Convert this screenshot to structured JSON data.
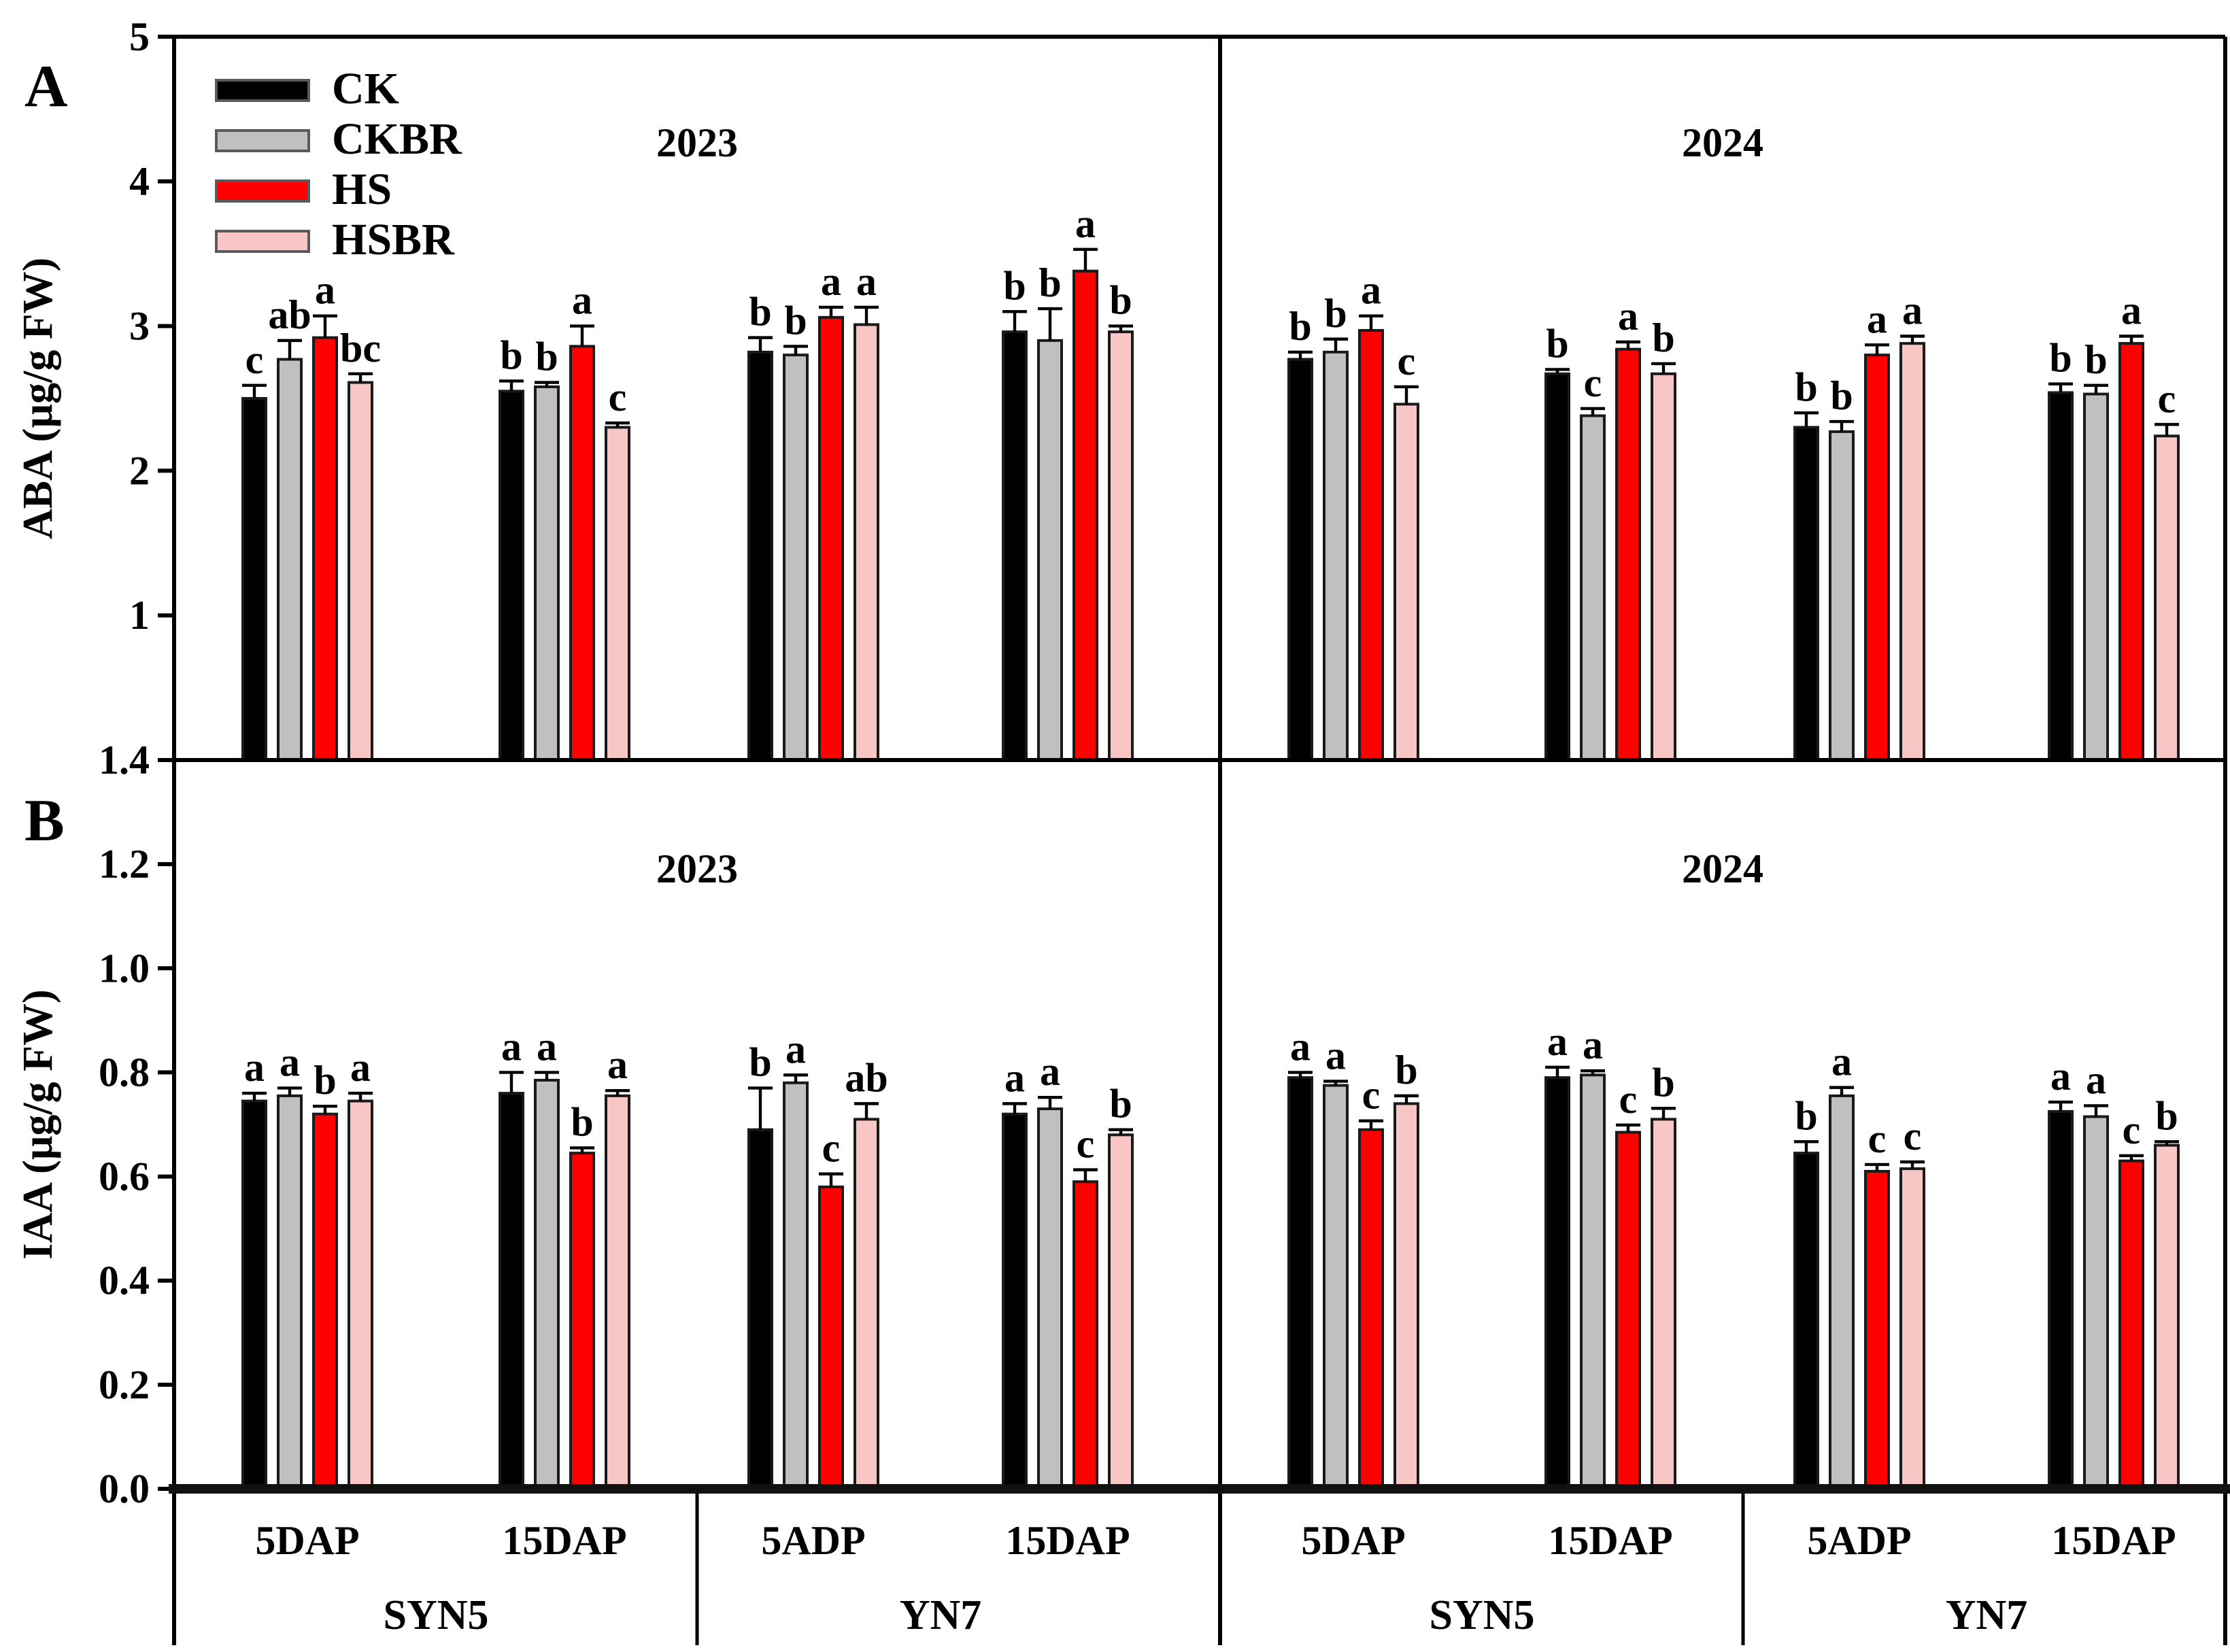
{
  "figure": {
    "panel_a_letter": "A",
    "panel_b_letter": "B",
    "background_color": "#FFFFFF"
  },
  "legend": {
    "position": "upper-left-inside-panel-A",
    "items": [
      {
        "label": "CK",
        "color": "#000000"
      },
      {
        "label": "CKBR",
        "color": "#C0C0C0"
      },
      {
        "label": "HS",
        "color": "#FF0000"
      },
      {
        "label": "HSBR",
        "color": "#F9C6C6"
      }
    ]
  },
  "xaxis": {
    "time_labels": [
      "5DAP",
      "15DAP",
      "5ADP",
      "15DAP",
      "5DAP",
      "15DAP",
      "5ADP",
      "15DAP"
    ],
    "variety_labels": [
      "SYN5",
      "YN7",
      "SYN5",
      "YN7"
    ]
  },
  "chart_data": [
    {
      "panel": "A",
      "type": "bar",
      "ylabel": "ABA (µg/g FW)",
      "ylim": [
        0,
        5
      ],
      "yticks": [
        1,
        2,
        3,
        4,
        5
      ],
      "ytick_labels": [
        "1",
        "2",
        "3",
        "4",
        "5"
      ],
      "grid": false,
      "year_titles": [
        "2023",
        "2024"
      ],
      "series_names": [
        "CK",
        "CKBR",
        "HS",
        "HSBR"
      ],
      "series_colors": [
        "#000000",
        "#C0C0C0",
        "#FF0000",
        "#F9C6C6"
      ],
      "groups": [
        {
          "year": "2023",
          "variety": "SYN5",
          "time": "5DAP",
          "values": [
            2.5,
            2.77,
            2.92,
            2.61
          ],
          "errors": [
            0.09,
            0.13,
            0.15,
            0.06
          ],
          "letters": [
            "c",
            "ab",
            "a",
            "bc"
          ]
        },
        {
          "year": "2023",
          "variety": "SYN5",
          "time": "15DAP",
          "values": [
            2.55,
            2.58,
            2.86,
            2.3
          ],
          "errors": [
            0.07,
            0.03,
            0.14,
            0.03
          ],
          "letters": [
            "b",
            "b",
            "a",
            "c"
          ]
        },
        {
          "year": "2023",
          "variety": "YN7",
          "time": "5ADP",
          "values": [
            2.82,
            2.8,
            3.06,
            3.01
          ],
          "errors": [
            0.1,
            0.06,
            0.07,
            0.12
          ],
          "letters": [
            "b",
            "b",
            "a",
            "a"
          ]
        },
        {
          "year": "2023",
          "variety": "YN7",
          "time": "15DAP",
          "values": [
            2.96,
            2.9,
            3.38,
            2.96
          ],
          "errors": [
            0.14,
            0.22,
            0.15,
            0.04
          ],
          "letters": [
            "b",
            "b",
            "a",
            "b"
          ]
        },
        {
          "year": "2024",
          "variety": "SYN5",
          "time": "5DAP",
          "values": [
            2.77,
            2.82,
            2.97,
            2.46
          ],
          "errors": [
            0.05,
            0.09,
            0.1,
            0.12
          ],
          "letters": [
            "b",
            "b",
            "a",
            "c"
          ]
        },
        {
          "year": "2024",
          "variety": "SYN5",
          "time": "15DAP",
          "values": [
            2.67,
            2.38,
            2.84,
            2.67
          ],
          "errors": [
            0.03,
            0.05,
            0.05,
            0.07
          ],
          "letters": [
            "b",
            "c",
            "a",
            "b"
          ]
        },
        {
          "year": "2024",
          "variety": "YN7",
          "time": "5ADP",
          "values": [
            2.3,
            2.27,
            2.8,
            2.88
          ],
          "errors": [
            0.1,
            0.07,
            0.07,
            0.05
          ],
          "letters": [
            "b",
            "b",
            "a",
            "a"
          ]
        },
        {
          "year": "2024",
          "variety": "YN7",
          "time": "15DAP",
          "values": [
            2.54,
            2.53,
            2.88,
            2.24
          ],
          "errors": [
            0.06,
            0.06,
            0.05,
            0.08
          ],
          "letters": [
            "b",
            "b",
            "a",
            "c"
          ]
        }
      ]
    },
    {
      "panel": "B",
      "type": "bar",
      "ylabel": "IAA (µg/g FW)",
      "ylim": [
        0,
        1.4
      ],
      "yticks": [
        0,
        0.2,
        0.4,
        0.6,
        0.8,
        1.0,
        1.2,
        1.4
      ],
      "ytick_labels": [
        "0.0",
        "0.2",
        "0.4",
        "0.6",
        "0.8",
        "1.0",
        "1.2",
        "1.4"
      ],
      "grid": false,
      "year_titles": [
        "2023",
        "2024"
      ],
      "series_names": [
        "CK",
        "CKBR",
        "HS",
        "HSBR"
      ],
      "series_colors": [
        "#000000",
        "#C0C0C0",
        "#FF0000",
        "#F9C6C6"
      ],
      "groups": [
        {
          "year": "2023",
          "variety": "SYN5",
          "time": "5DAP",
          "values": [
            0.745,
            0.755,
            0.72,
            0.745
          ],
          "errors": [
            0.015,
            0.015,
            0.015,
            0.015
          ],
          "letters": [
            "a",
            "a",
            "b",
            "a"
          ]
        },
        {
          "year": "2023",
          "variety": "SYN5",
          "time": "15DAP",
          "values": [
            0.76,
            0.785,
            0.645,
            0.755
          ],
          "errors": [
            0.04,
            0.015,
            0.01,
            0.01
          ],
          "letters": [
            "a",
            "a",
            "b",
            "a"
          ]
        },
        {
          "year": "2023",
          "variety": "YN7",
          "time": "5ADP",
          "values": [
            0.69,
            0.78,
            0.58,
            0.71
          ],
          "errors": [
            0.08,
            0.015,
            0.025,
            0.03
          ],
          "letters": [
            "b",
            "a",
            "c",
            "ab"
          ]
        },
        {
          "year": "2023",
          "variety": "YN7",
          "time": "15DAP",
          "values": [
            0.72,
            0.73,
            0.59,
            0.68
          ],
          "errors": [
            0.02,
            0.022,
            0.023,
            0.01
          ],
          "letters": [
            "a",
            "a",
            "c",
            "b"
          ]
        },
        {
          "year": "2024",
          "variety": "SYN5",
          "time": "5DAP",
          "values": [
            0.79,
            0.775,
            0.69,
            0.74
          ],
          "errors": [
            0.01,
            0.008,
            0.017,
            0.015
          ],
          "letters": [
            "a",
            "a",
            "c",
            "b"
          ]
        },
        {
          "year": "2024",
          "variety": "SYN5",
          "time": "15DAP",
          "values": [
            0.79,
            0.795,
            0.685,
            0.71
          ],
          "errors": [
            0.02,
            0.008,
            0.014,
            0.021
          ],
          "letters": [
            "a",
            "a",
            "c",
            "b"
          ]
        },
        {
          "year": "2024",
          "variety": "YN7",
          "time": "5ADP",
          "values": [
            0.645,
            0.755,
            0.61,
            0.615
          ],
          "errors": [
            0.022,
            0.016,
            0.013,
            0.013
          ],
          "letters": [
            "b",
            "a",
            "c",
            "c"
          ]
        },
        {
          "year": "2024",
          "variety": "YN7",
          "time": "15DAP",
          "values": [
            0.725,
            0.715,
            0.63,
            0.66
          ],
          "errors": [
            0.018,
            0.021,
            0.01,
            0.007
          ],
          "letters": [
            "a",
            "a",
            "c",
            "b"
          ]
        }
      ]
    }
  ]
}
